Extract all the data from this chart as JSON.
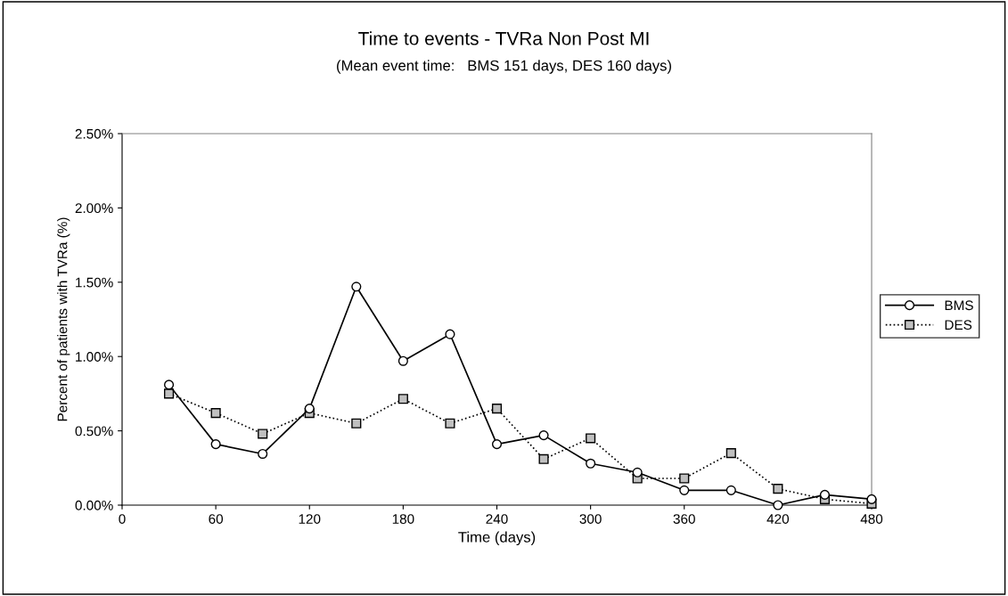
{
  "chart_data": {
    "type": "line",
    "title": "Time to events - TVRa Non Post MI",
    "subtitle": "(Mean event time:   BMS 151 days, DES 160 days)",
    "xlabel": "Time (days)",
    "ylabel": "Percent of patients with TVRa (%)",
    "x": [
      30,
      60,
      90,
      120,
      150,
      180,
      210,
      240,
      270,
      300,
      330,
      360,
      390,
      420,
      450,
      480
    ],
    "series": [
      {
        "name": "BMS",
        "color": "#000000",
        "marker": "circle",
        "line_style": "solid",
        "values": [
          0.81,
          0.41,
          0.345,
          0.65,
          1.47,
          0.97,
          1.15,
          0.41,
          0.47,
          0.28,
          0.22,
          0.1,
          0.1,
          0,
          0.07,
          0.04
        ]
      },
      {
        "name": "DES",
        "color": "#000000",
        "marker": "square",
        "line_style": "dotted",
        "values": [
          0.75,
          0.62,
          0.48,
          0.62,
          0.55,
          0.715,
          0.55,
          0.65,
          0.31,
          0.45,
          0.18,
          0.18,
          0.35,
          0.11,
          0.04,
          0.01
        ]
      }
    ],
    "xlim": [
      0,
      480
    ],
    "xticks": [
      0,
      60,
      120,
      180,
      240,
      300,
      360,
      420,
      480
    ],
    "ylim": [
      0,
      2.5
    ],
    "yticks": [
      {
        "value": 0,
        "label": "0.00%"
      },
      {
        "value": 0.5,
        "label": "0.50%"
      },
      {
        "value": 1,
        "label": "1.00%"
      },
      {
        "value": 1.5,
        "label": "1.50%"
      },
      {
        "value": 2,
        "label": "2.00%"
      },
      {
        "value": 2.5,
        "label": "2.50%"
      }
    ],
    "grid": false,
    "legend": "right"
  }
}
